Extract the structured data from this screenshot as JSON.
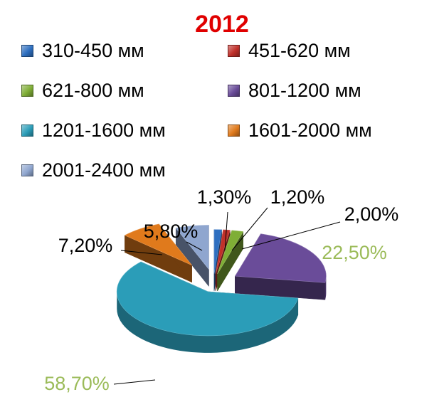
{
  "chart_data": {
    "type": "pie",
    "title": "2012",
    "legend_placement": "top",
    "series": [
      {
        "name": "310-450 мм",
        "value": 1.3,
        "label": "1,30%",
        "color": "#2e6fc0",
        "label_color": "#000000"
      },
      {
        "name": "451-620 мм",
        "value": 1.2,
        "label": "1,20%",
        "color": "#c0302a",
        "label_color": "#000000"
      },
      {
        "name": "621-800 мм",
        "value": 2.0,
        "label": "2,00%",
        "color": "#7fae36",
        "label_color": "#000000"
      },
      {
        "name": "801-1200 мм",
        "value": 22.5,
        "label": "22,50%",
        "color": "#6a4c99",
        "label_color": "#9bbb59"
      },
      {
        "name": "1201-1600 мм",
        "value": 58.7,
        "label": "58,70%",
        "color": "#2b9db8",
        "label_color": "#9bbb59"
      },
      {
        "name": "1601-2000 мм",
        "value": 7.2,
        "label": "7,20%",
        "color": "#e07a1c",
        "label_color": "#000000"
      },
      {
        "name": "2001-2400 мм",
        "value": 5.8,
        "label": "5,80%",
        "color": "#8fa6cf",
        "label_color": "#000000"
      }
    ]
  }
}
